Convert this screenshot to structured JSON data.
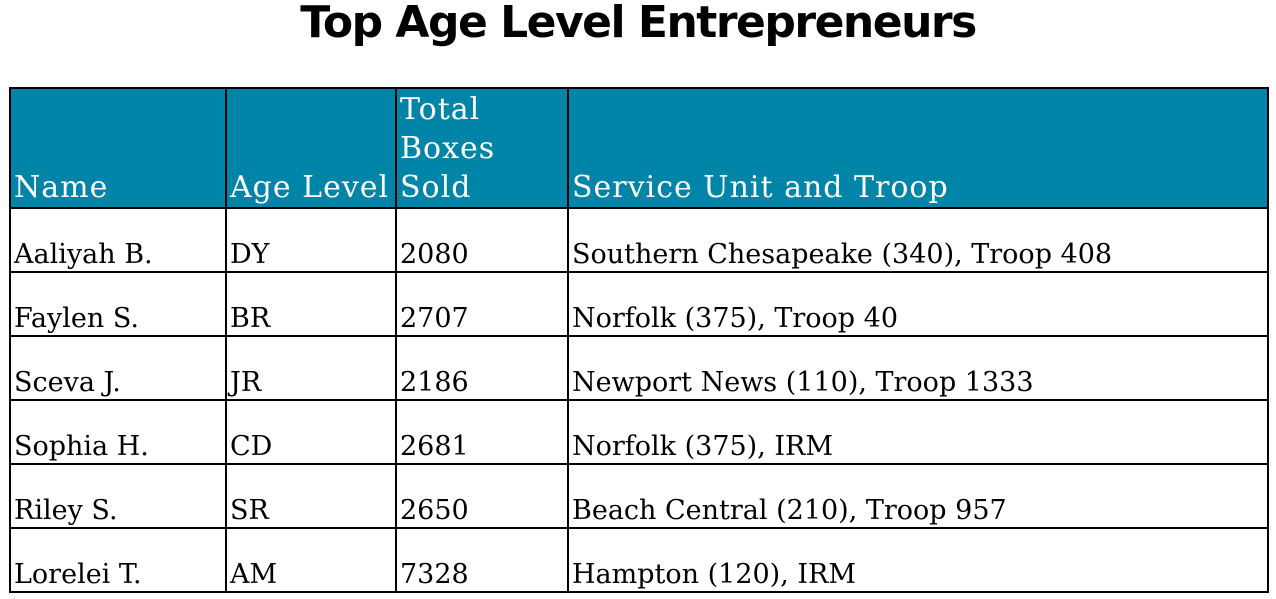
{
  "title": "Top Age Level Entrepreneurs",
  "table": {
    "headers": {
      "name": "Name",
      "age_level": "Age Level",
      "total_boxes_sold": "Total Boxes Sold",
      "service_unit_troop": "Service Unit and Troop"
    },
    "rows": [
      {
        "name": "Aaliyah B.",
        "age_level": "DY",
        "total_boxes_sold": "2080",
        "service_unit_troop": "Southern Chesapeake (340), Troop 408"
      },
      {
        "name": "Faylen S.",
        "age_level": "BR",
        "total_boxes_sold": "2707",
        "service_unit_troop": "Norfolk (375), Troop 40"
      },
      {
        "name": "Sceva J.",
        "age_level": "JR",
        "total_boxes_sold": "2186",
        "service_unit_troop": "Newport News (110), Troop 1333"
      },
      {
        "name": "Sophia H.",
        "age_level": "CD",
        "total_boxes_sold": "2681",
        "service_unit_troop": "Norfolk (375), IRM"
      },
      {
        "name": "Riley S.",
        "age_level": "SR",
        "total_boxes_sold": "2650",
        "service_unit_troop": "Beach Central (210), Troop 957"
      },
      {
        "name": "Lorelei T.",
        "age_level": "AM",
        "total_boxes_sold": "7328",
        "service_unit_troop": "Hampton (120), IRM"
      }
    ]
  },
  "colors": {
    "header_background": "#0084a8",
    "header_text": "#ffffff",
    "border": "#000000",
    "body_text": "#000000"
  }
}
